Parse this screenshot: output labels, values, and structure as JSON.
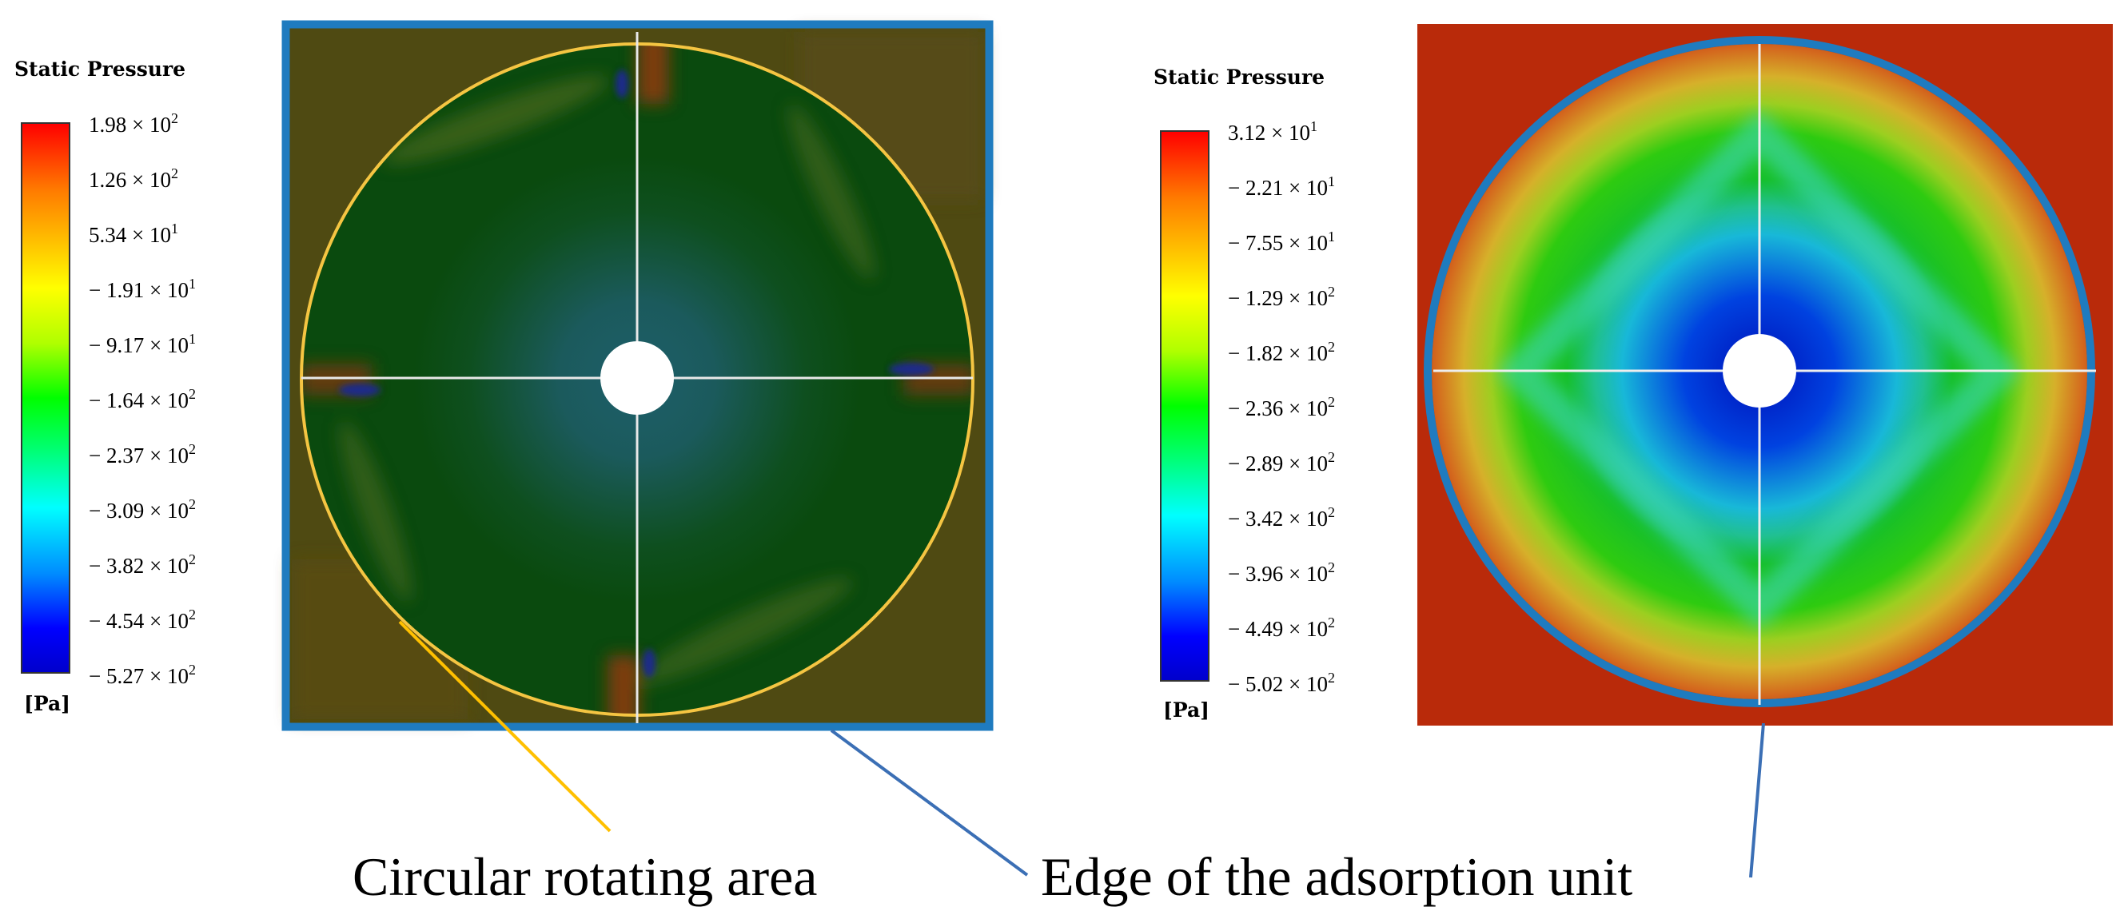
{
  "left_legend": {
    "title": "Static Pressure",
    "unit": "[Pa]",
    "ticks": [
      {
        "m": "1.98",
        "e": "2"
      },
      {
        "m": "1.26",
        "e": "2"
      },
      {
        "m": "5.34",
        "e": "1"
      },
      {
        "m": "− 1.91",
        "e": "1"
      },
      {
        "m": "− 9.17",
        "e": "1"
      },
      {
        "m": "− 1.64",
        "e": "2"
      },
      {
        "m": "− 2.37",
        "e": "2"
      },
      {
        "m": "− 3.09",
        "e": "2"
      },
      {
        "m": "− 3.82",
        "e": "2"
      },
      {
        "m": "− 4.54",
        "e": "2"
      },
      {
        "m": "− 5.27",
        "e": "2"
      }
    ]
  },
  "right_legend": {
    "title": "Static Pressure",
    "unit": "[Pa]",
    "ticks": [
      {
        "m": "3.12",
        "e": "1"
      },
      {
        "m": "− 2.21",
        "e": "1"
      },
      {
        "m": "− 7.55",
        "e": "1"
      },
      {
        "m": "− 1.29",
        "e": "2"
      },
      {
        "m": "− 1.82",
        "e": "2"
      },
      {
        "m": "− 2.36",
        "e": "2"
      },
      {
        "m": "− 2.89",
        "e": "2"
      },
      {
        "m": "− 3.42",
        "e": "2"
      },
      {
        "m": "− 3.96",
        "e": "2"
      },
      {
        "m": "− 4.49",
        "e": "2"
      },
      {
        "m": "− 5.02",
        "e": "2"
      }
    ]
  },
  "captions": {
    "rotating_area": "Circular rotating area",
    "adsorption_edge": "Edge of the adsorption unit"
  },
  "colors": {
    "rotating_area_outline": "#f5c542",
    "adsorption_edge_outline": "#1f7bbf",
    "left_leader": "#ffc000",
    "blue_leader": "#3b6fb5",
    "right_outer": "#b92a0a"
  }
}
